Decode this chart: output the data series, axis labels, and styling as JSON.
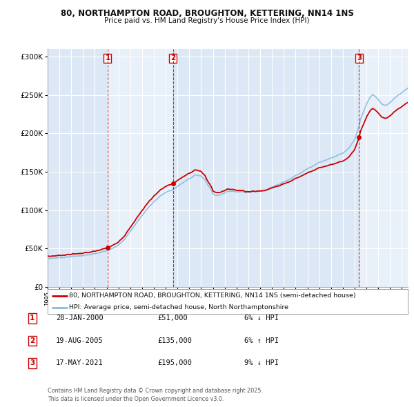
{
  "title_line1": "80, NORTHAMPTON ROAD, BROUGHTON, KETTERING, NN14 1NS",
  "title_line2": "Price paid vs. HM Land Registry's House Price Index (HPI)",
  "background_color": "#ffffff",
  "plot_bg_color": "#dce8f5",
  "grid_color": "#ffffff",
  "sale_line_color": "#cc0000",
  "hpi_line_color": "#88bbdd",
  "sale_marker_color": "#cc0000",
  "vline_color": "#cc0000",
  "transactions": [
    {
      "date_num": 2000.08,
      "price": 51000,
      "label": "1"
    },
    {
      "date_num": 2005.63,
      "price": 135000,
      "label": "2"
    },
    {
      "date_num": 2021.38,
      "price": 195000,
      "label": "3"
    }
  ],
  "legend_sale": "80, NORTHAMPTON ROAD, BROUGHTON, KETTERING, NN14 1NS (semi-detached house)",
  "legend_hpi": "HPI: Average price, semi-detached house, North Northamptonshire",
  "table_rows": [
    {
      "num": "1",
      "date": "28-JAN-2000",
      "price": "£51,000",
      "hpi_note": "6% ↓ HPI"
    },
    {
      "num": "2",
      "date": "19-AUG-2005",
      "price": "£135,000",
      "hpi_note": "6% ↑ HPI"
    },
    {
      "num": "3",
      "date": "17-MAY-2021",
      "price": "£195,000",
      "hpi_note": "9% ↓ HPI"
    }
  ],
  "footer": "Contains HM Land Registry data © Crown copyright and database right 2025.\nThis data is licensed under the Open Government Licence v3.0.",
  "ylim": [
    0,
    310000
  ],
  "xlim_start": 1995.0,
  "xlim_end": 2025.5
}
